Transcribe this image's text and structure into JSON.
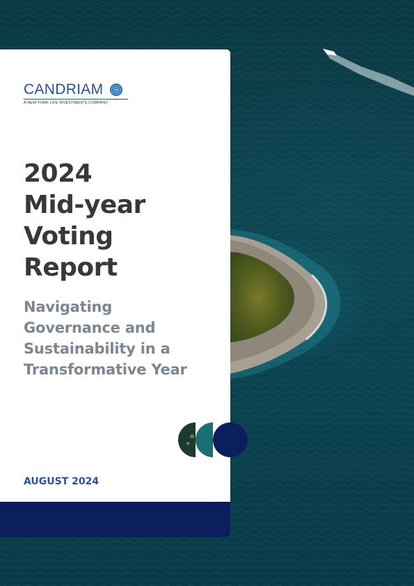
{
  "brand": {
    "name": "CANDRIAM",
    "tagline": "A NEW YORK LIFE INVESTMENTS COMPANY",
    "color": "#2a4f9a"
  },
  "report": {
    "title_lines": [
      "2024",
      "Mid-year",
      "Voting",
      "Report"
    ],
    "subtitle_lines": [
      "Navigating",
      "Governance and",
      "Sustainability in a",
      "Transformative Year"
    ],
    "date": "AUGUST 2024"
  },
  "colors": {
    "title": "#35393c",
    "subtitle": "#7b8690",
    "accent_navy": "#0b1f5e",
    "date": "#2b4fa2"
  }
}
